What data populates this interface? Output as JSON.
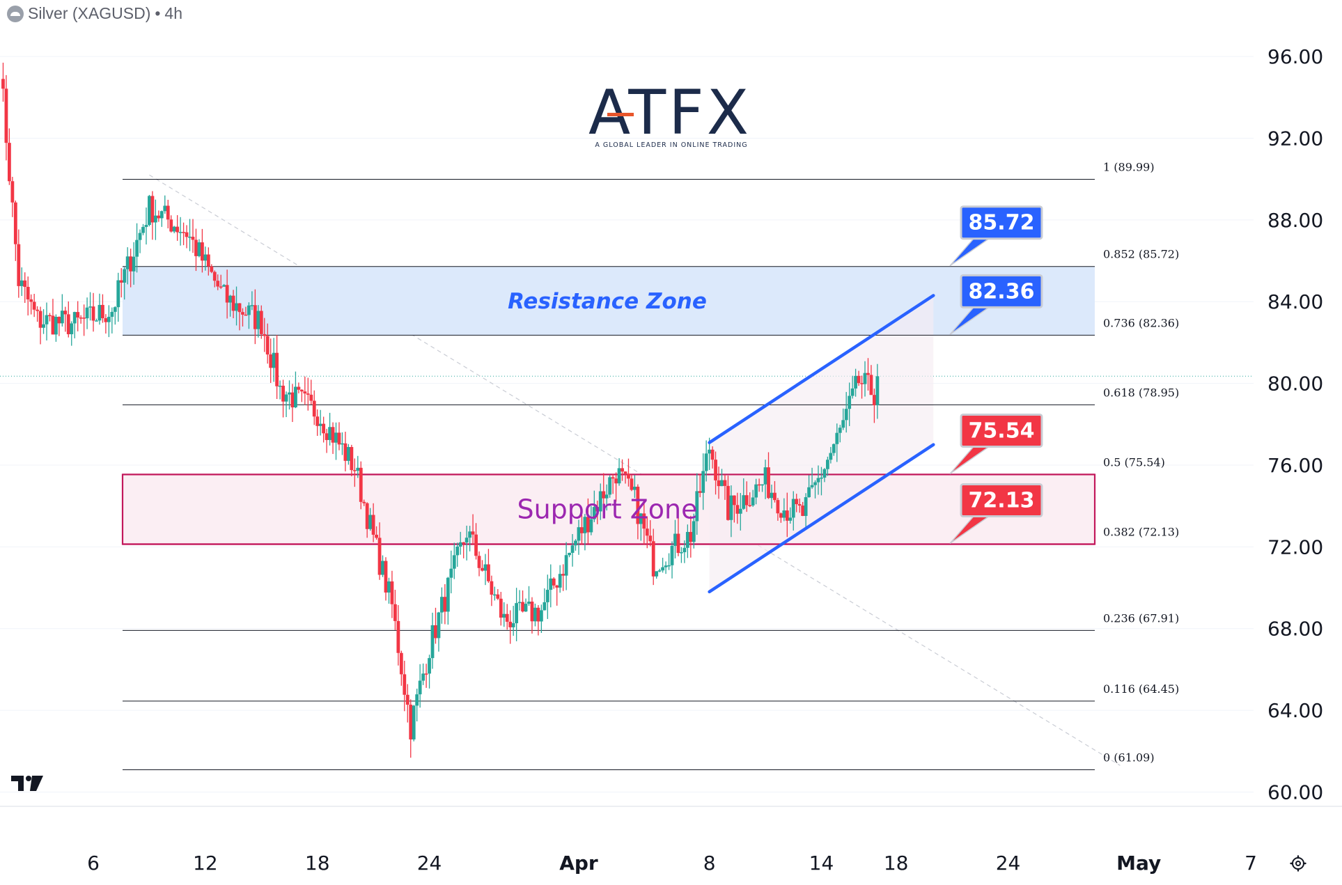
{
  "header": {
    "symbol": "Silver (XAGUSD)",
    "separator": "•",
    "interval": "4h"
  },
  "logo": {
    "brand": "ATFX",
    "tagline": "A GLOBAL LEADER IN ONLINE TRADING",
    "brand_color": "#1c2b4a",
    "accent_color": "#e8552b"
  },
  "chart_data": {
    "type": "candlestick",
    "y_axis": {
      "ticks": [
        "96.00",
        "92.00",
        "88.00",
        "84.00",
        "80.00",
        "76.00",
        "72.00",
        "68.00",
        "64.00",
        "60.00"
      ],
      "range": [
        59.3,
        97.4
      ],
      "position": "right"
    },
    "x_axis": {
      "ticks": [
        "6",
        "12",
        "18",
        "24",
        "Apr",
        "8",
        "14",
        "18",
        "24",
        "May",
        "7"
      ],
      "range": [
        "2026-03-01",
        "2026-05-07"
      ]
    },
    "grid": true,
    "current_price_line": 80.35,
    "fibonacci": [
      {
        "label": "1 (89.99)",
        "level": 89.99
      },
      {
        "label": "0.852 (85.72)",
        "level": 85.72
      },
      {
        "label": "0.736 (82.36)",
        "level": 82.36
      },
      {
        "label": "0.618 (78.95)",
        "level": 78.95
      },
      {
        "label": "0.5 (75.54)",
        "level": 75.54
      },
      {
        "label": "0.382 (72.13)",
        "level": 72.13
      },
      {
        "label": "0.236 (67.91)",
        "level": 67.91
      },
      {
        "label": "0.116 (64.45)",
        "level": 64.45
      },
      {
        "label": "0 (61.09)",
        "level": 61.09
      }
    ],
    "zones": [
      {
        "label": "Resistance Zone",
        "top": 85.72,
        "bottom": 82.36,
        "fill": "#dce9fb",
        "border": "#1e3a8a",
        "text_color": "#2962ff"
      },
      {
        "label": "Support Zone",
        "top": 75.54,
        "bottom": 72.13,
        "fill": "#fbeef3",
        "border": "#c2185b",
        "text_color": "#9c27b0"
      }
    ],
    "price_tags": [
      {
        "label": "85.72",
        "level": 85.72,
        "color": "#2962ff"
      },
      {
        "label": "82.36",
        "level": 82.36,
        "color": "#2962ff"
      },
      {
        "label": "75.54",
        "level": 75.54,
        "color": "#f23645"
      },
      {
        "label": "72.13",
        "level": 72.13,
        "color": "#f23645"
      }
    ],
    "channel": {
      "color": "#2962ff",
      "upper": [
        [
          "2026-04-08",
          77.1
        ],
        [
          "2026-04-20",
          84.3
        ]
      ],
      "lower": [
        [
          "2026-04-08",
          69.8
        ],
        [
          "2026-04-20",
          77.0
        ]
      ]
    },
    "diagonal_trend": {
      "points": [
        [
          "2026-03-09",
          90.2
        ],
        [
          "2026-04-30",
          61.3
        ]
      ],
      "style": "dashed"
    },
    "anchors": [
      {
        "date": "2026-03-01",
        "price": 95.6
      },
      {
        "date": "2026-03-02",
        "price": 85.0
      },
      {
        "date": "2026-03-03",
        "price": 83.1
      },
      {
        "date": "2026-03-05",
        "price": 82.9
      },
      {
        "date": "2026-03-07",
        "price": 83.6
      },
      {
        "date": "2026-03-09",
        "price": 88.6
      },
      {
        "date": "2026-03-11",
        "price": 87.4
      },
      {
        "date": "2026-03-13",
        "price": 84.2
      },
      {
        "date": "2026-03-15",
        "price": 83.0
      },
      {
        "date": "2026-03-16",
        "price": 79.7
      },
      {
        "date": "2026-03-18",
        "price": 78.6
      },
      {
        "date": "2026-03-20",
        "price": 75.9
      },
      {
        "date": "2026-03-21",
        "price": 72.4
      },
      {
        "date": "2026-03-22",
        "price": 69.1
      },
      {
        "date": "2026-03-23",
        "price": 63.2
      },
      {
        "date": "2026-03-24",
        "price": 67.1
      },
      {
        "date": "2026-03-26",
        "price": 72.8
      },
      {
        "date": "2026-03-28",
        "price": 68.4
      },
      {
        "date": "2026-03-30",
        "price": 68.9
      },
      {
        "date": "2026-04-01",
        "price": 72.6
      },
      {
        "date": "2026-04-03",
        "price": 75.7
      },
      {
        "date": "2026-04-04",
        "price": 74.3
      },
      {
        "date": "2026-04-05",
        "price": 71.2
      },
      {
        "date": "2026-04-07",
        "price": 72.6
      },
      {
        "date": "2026-04-08",
        "price": 76.9
      },
      {
        "date": "2026-04-09",
        "price": 73.8
      },
      {
        "date": "2026-04-11",
        "price": 75.2
      },
      {
        "date": "2026-04-12",
        "price": 73.9
      },
      {
        "date": "2026-04-13",
        "price": 73.6
      },
      {
        "date": "2026-04-15",
        "price": 77.6
      },
      {
        "date": "2026-04-16",
        "price": 80.1
      },
      {
        "date": "2026-04-17",
        "price": 79.4
      },
      {
        "date": "2026-04-17",
        "price": 80.35
      }
    ]
  }
}
